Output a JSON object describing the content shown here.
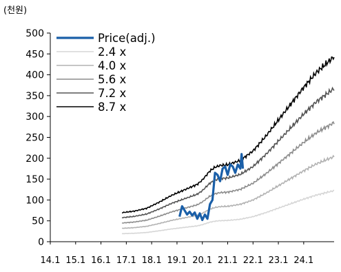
{
  "chart_data": {
    "type": "line",
    "unit_label": "(천원)",
    "ylim": [
      0,
      500
    ],
    "yticks": [
      "0",
      "50",
      "100",
      "150",
      "200",
      "250",
      "300",
      "350",
      "400",
      "450",
      "500"
    ],
    "xlim": [
      14.0,
      25.2
    ],
    "xticks": [
      {
        "v": 14.0,
        "label": "14.1"
      },
      {
        "v": 15.0,
        "label": "15.1"
      },
      {
        "v": 16.0,
        "label": "16.1"
      },
      {
        "v": 17.0,
        "label": "17.1"
      },
      {
        "v": 18.0,
        "label": "18.1"
      },
      {
        "v": 19.0,
        "label": "19.1"
      },
      {
        "v": 20.0,
        "label": "20.1"
      },
      {
        "v": 21.0,
        "label": "21.1"
      },
      {
        "v": 22.0,
        "label": "22.1"
      },
      {
        "v": 23.0,
        "label": "23.1"
      },
      {
        "v": 24.0,
        "label": "24.1"
      }
    ],
    "grid": false,
    "legend_position": "top-left",
    "bps": [
      [
        16.83,
        8.0
      ],
      [
        17.3,
        8.4
      ],
      [
        17.8,
        9.2
      ],
      [
        18.3,
        10.9
      ],
      [
        18.8,
        12.8
      ],
      [
        19.3,
        14.3
      ],
      [
        19.8,
        15.8
      ],
      [
        20.0,
        17.0
      ],
      [
        20.3,
        19.5
      ],
      [
        20.5,
        20.5
      ],
      [
        20.7,
        21.0
      ],
      [
        21.0,
        21.2
      ],
      [
        21.5,
        22.4
      ],
      [
        22.0,
        25.0
      ],
      [
        22.5,
        29.0
      ],
      [
        23.0,
        33.5
      ],
      [
        23.5,
        38.0
      ],
      [
        24.0,
        42.5
      ],
      [
        24.5,
        46.6
      ],
      [
        25.2,
        51.0
      ]
    ],
    "series": [
      {
        "name": "Price(adj.)",
        "color": "#1a5fa8",
        "width": 3.2,
        "x": [
          19.1,
          19.2,
          19.3,
          19.4,
          19.5,
          19.6,
          19.7,
          19.8,
          19.9,
          20.0,
          20.1,
          20.2,
          20.3,
          20.4,
          20.5,
          20.6,
          20.7,
          20.8,
          20.9,
          21.0,
          21.1,
          21.2,
          21.3,
          21.4,
          21.5,
          21.55,
          21.6
        ],
        "values": [
          60,
          85,
          75,
          65,
          72,
          63,
          70,
          55,
          68,
          52,
          65,
          55,
          90,
          100,
          165,
          160,
          145,
          175,
          180,
          160,
          185,
          180,
          165,
          185,
          175,
          210,
          175
        ]
      },
      {
        "name": "2.4 x",
        "color": "#d6d6d6",
        "width": 1.6,
        "multiple": 2.4
      },
      {
        "name": "4.0 x",
        "color": "#b2b2b2",
        "width": 1.6,
        "multiple": 4.0
      },
      {
        "name": "5.6 x",
        "color": "#8c8c8c",
        "width": 1.6,
        "multiple": 5.6
      },
      {
        "name": "7.2 x",
        "color": "#555555",
        "width": 1.6,
        "multiple": 7.2
      },
      {
        "name": "8.7 x",
        "color": "#000000",
        "width": 1.6,
        "multiple": 8.7
      }
    ]
  }
}
